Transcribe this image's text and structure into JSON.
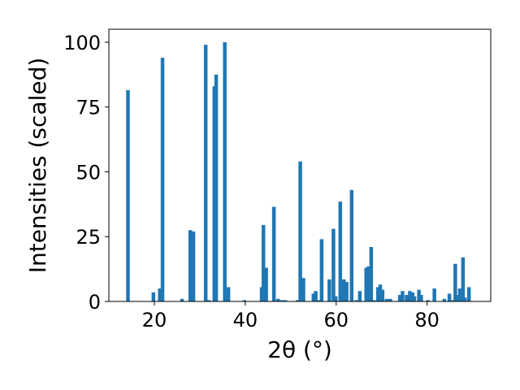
{
  "chart_data": {
    "type": "bar",
    "title": "",
    "xlabel": "2θ (°)",
    "ylabel": "Intensities (scaled)",
    "xlim": [
      10,
      94
    ],
    "ylim": [
      0,
      105
    ],
    "xticks": [
      20,
      40,
      60,
      80
    ],
    "yticks": [
      0,
      25,
      50,
      75,
      100
    ],
    "grid": false,
    "legend": "none",
    "bar_color": "#1f77b4",
    "bar_width": 0.8,
    "series": [
      {
        "x": [
          14.2,
          19.8,
          21.2,
          21.8,
          26.1,
          27.9,
          28.6,
          31.3,
          32.0,
          33.2,
          33.6,
          35.5,
          36.3,
          39.8,
          43.6,
          44.0,
          44.6,
          46.3,
          47.2,
          48.0,
          48.8,
          51.5,
          52.1,
          52.8,
          55.0,
          55.5,
          56.0,
          56.8,
          58.5,
          59.4,
          59.9,
          60.9,
          61.7,
          62.3,
          63.4,
          64.4,
          65.2,
          66.6,
          67.1,
          67.7,
          68.3,
          69.2,
          69.7,
          70.2,
          71.1,
          71.9,
          74.0,
          74.6,
          75.5,
          76.2,
          76.8,
          77.2,
          78.2,
          78.7,
          80.2,
          81.6,
          83.8,
          84.9,
          85.4,
          86.2,
          86.6,
          87.2,
          87.9,
          88.3,
          89.2
        ],
        "values": [
          81.5,
          3.5,
          5.0,
          94.0,
          1.0,
          27.5,
          27.0,
          99.0,
          0.5,
          83.0,
          87.5,
          100.0,
          5.5,
          0.5,
          5.5,
          29.5,
          13.0,
          36.5,
          1.0,
          0.5,
          0.5,
          0.5,
          54.0,
          9.0,
          3.0,
          4.0,
          0.5,
          24.0,
          8.5,
          28.0,
          2.0,
          38.5,
          8.5,
          7.5,
          43.0,
          0.5,
          4.0,
          13.0,
          13.5,
          21.0,
          0.5,
          5.5,
          6.5,
          4.5,
          1.0,
          1.0,
          2.5,
          4.0,
          2.5,
          4.0,
          3.5,
          2.0,
          4.5,
          2.5,
          0.5,
          5.0,
          1.0,
          3.0,
          0.5,
          14.5,
          2.5,
          5.0,
          17.0,
          1.5,
          5.5
        ]
      }
    ]
  }
}
